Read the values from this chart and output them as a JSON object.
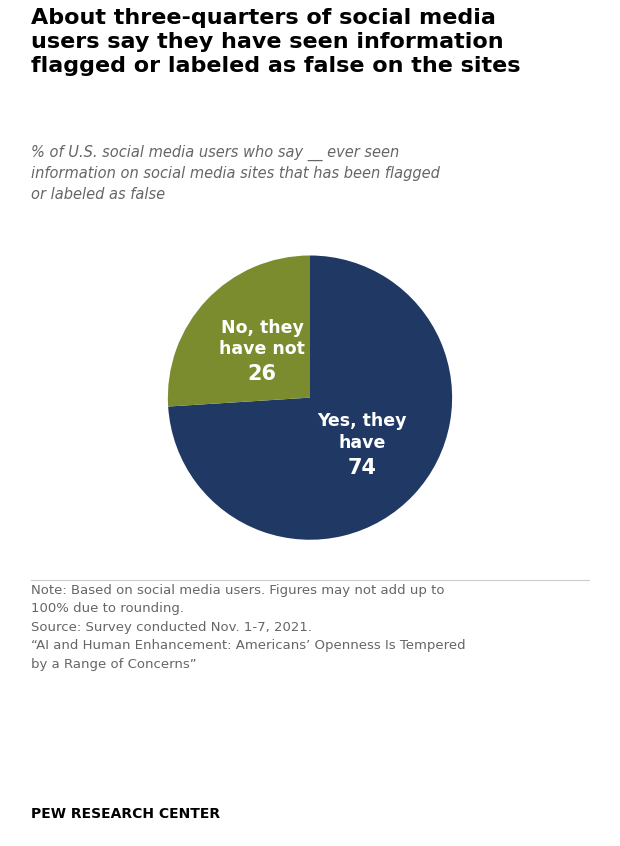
{
  "title": "About three-quarters of social media\nusers say they have seen information\nflagged or labeled as false on the sites",
  "subtitle": "% of U.S. social media users who say __ ever seen\ninformation on social media sites that has been flagged\nor labeled as false",
  "slices": [
    74,
    26
  ],
  "colors": [
    "#1f3864",
    "#7a8c2e"
  ],
  "startangle": 90,
  "note_text": "Note: Based on social media users. Figures may not add up to\n100% due to rounding.\nSource: Survey conducted Nov. 1-7, 2021.\n“AI and Human Enhancement: Americans’ Openness Is Tempered\nby a Range of Concerns”",
  "footer": "PEW RESEARCH CENTER",
  "background_color": "#ffffff",
  "title_fontsize": 16,
  "subtitle_fontsize": 10.5,
  "label_fontsize": 12.5,
  "value_fontsize": 15,
  "note_fontsize": 9.5,
  "footer_fontsize": 10
}
